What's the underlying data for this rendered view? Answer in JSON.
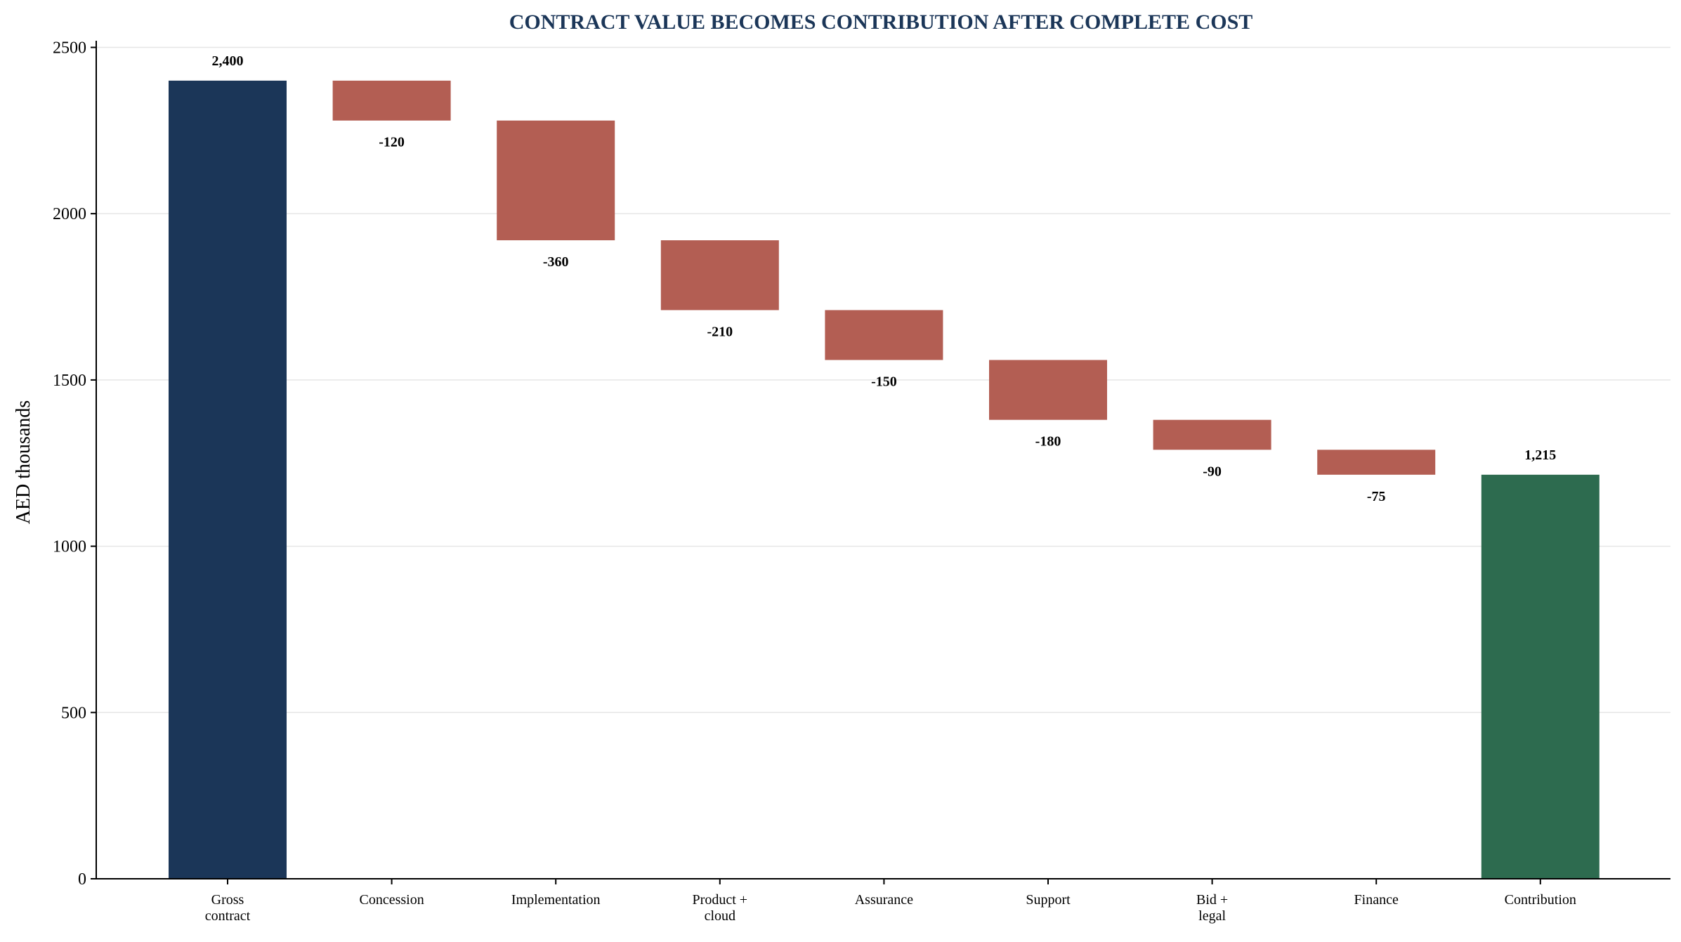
{
  "chart_data": {
    "type": "bar",
    "subtype": "waterfall",
    "title": "CONTRACT VALUE BECOMES CONTRIBUTION AFTER COMPLETE COST",
    "xlabel": "",
    "ylabel": "AED thousands",
    "ylim": [
      0,
      2520
    ],
    "yticks": [
      0,
      500,
      1000,
      1500,
      2000,
      2500
    ],
    "grid": "horizontal",
    "legend": "none",
    "categories": [
      [
        "Gross",
        "contract"
      ],
      [
        "Concession"
      ],
      [
        "Implementation"
      ],
      [
        "Product +",
        "cloud"
      ],
      [
        "Assurance"
      ],
      [
        "Support"
      ],
      [
        "Bid +",
        "legal"
      ],
      [
        "Finance"
      ],
      [
        "Contribution"
      ]
    ],
    "bars": [
      {
        "kind": "total",
        "start": 0,
        "end": 2400,
        "label": "2,400"
      },
      {
        "kind": "decrease",
        "start": 2400,
        "end": 2280,
        "label": "-120"
      },
      {
        "kind": "decrease",
        "start": 2280,
        "end": 1920,
        "label": "-360"
      },
      {
        "kind": "decrease",
        "start": 1920,
        "end": 1710,
        "label": "-210"
      },
      {
        "kind": "decrease",
        "start": 1710,
        "end": 1560,
        "label": "-150"
      },
      {
        "kind": "decrease",
        "start": 1560,
        "end": 1380,
        "label": "-180"
      },
      {
        "kind": "decrease",
        "start": 1380,
        "end": 1290,
        "label": "-90"
      },
      {
        "kind": "decrease",
        "start": 1290,
        "end": 1215,
        "label": "-75"
      },
      {
        "kind": "total_final",
        "start": 0,
        "end": 1215,
        "label": "1,215"
      }
    ],
    "colors": {
      "start_total": "#1b3658",
      "decrease": "#b35e53",
      "final_total": "#2d6b4f",
      "title": "#1b3658",
      "grid": "#e6e6e6",
      "axis": "#000000"
    }
  }
}
